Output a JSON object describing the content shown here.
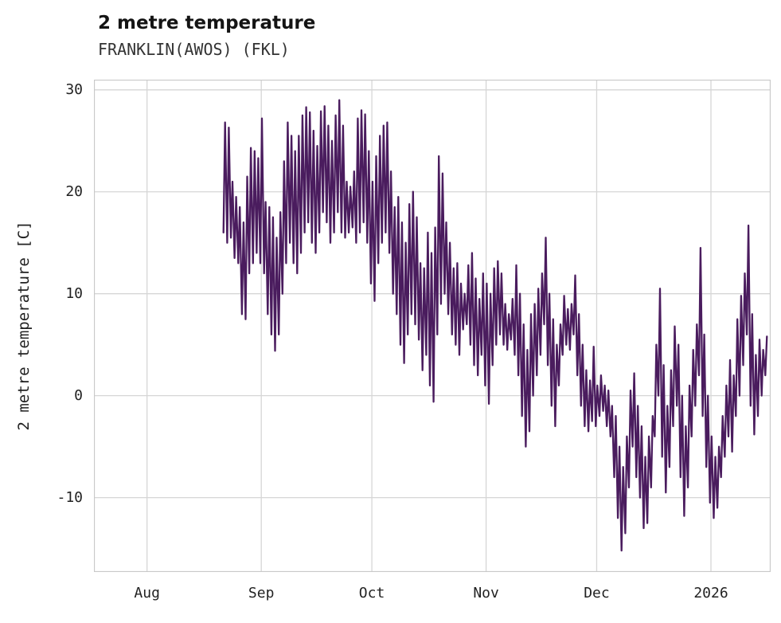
{
  "header": {
    "title": "2 metre temperature",
    "subtitle": "FRANKLIN(AWOS) (FKL)"
  },
  "chart_data": {
    "type": "line",
    "title": "2 metre temperature",
    "subtitle": "FRANKLIN(AWOS) (FKL)",
    "station": "FRANKLIN(AWOS) (FKL)",
    "xlabel": "",
    "ylabel": "2 metre temperature [C]",
    "x_unit": "days since 2025-08-01",
    "xlim": [
      -14.4,
      169.2
    ],
    "ylim": [
      -17.3,
      31.0
    ],
    "grid": true,
    "legend": "none",
    "line_color": "#4a1c5e",
    "grid_color": "#d6d6d6",
    "spine_color": "#c9c9c9",
    "x_ticks": [
      {
        "label": "Aug",
        "day": 0
      },
      {
        "label": "Sep",
        "day": 31
      },
      {
        "label": "Oct",
        "day": 61
      },
      {
        "label": "Nov",
        "day": 92
      },
      {
        "label": "Dec",
        "day": 122
      },
      {
        "label": "2026",
        "day": 153
      }
    ],
    "y_ticks": [
      30,
      20,
      10,
      0,
      -10
    ],
    "series": [
      {
        "name": "2 metre temperature",
        "start_day": 20.5,
        "note": "daily [min,max] degC pairs, one per day from 2025-08-21 to 2026-01-15",
        "daily_min_max": [
          [
            16,
            26.8
          ],
          [
            15,
            26.3
          ],
          [
            15.5,
            21
          ],
          [
            13.5,
            19.5
          ],
          [
            13,
            18.5
          ],
          [
            8,
            17
          ],
          [
            7.5,
            21.5
          ],
          [
            12,
            24.3
          ],
          [
            13,
            24
          ],
          [
            14,
            23.3
          ],
          [
            13,
            27.2
          ],
          [
            12,
            19
          ],
          [
            8,
            18.5
          ],
          [
            6,
            17.5
          ],
          [
            4.4,
            15.5
          ],
          [
            6,
            18
          ],
          [
            10,
            23
          ],
          [
            13,
            26.8
          ],
          [
            15,
            25.5
          ],
          [
            13,
            24
          ],
          [
            12,
            25.5
          ],
          [
            14,
            27.5
          ],
          [
            16,
            28.3
          ],
          [
            17,
            27.8
          ],
          [
            15,
            26
          ],
          [
            14,
            24.5
          ],
          [
            16,
            27.9
          ],
          [
            18,
            28.4
          ],
          [
            17,
            26.5
          ],
          [
            15,
            25
          ],
          [
            16,
            27.5
          ],
          [
            18,
            29
          ],
          [
            16,
            26.5
          ],
          [
            15.5,
            21
          ],
          [
            16,
            20.5
          ],
          [
            16.5,
            22
          ],
          [
            15,
            27.2
          ],
          [
            16,
            28
          ],
          [
            17,
            27.6
          ],
          [
            15,
            24
          ],
          [
            11,
            21
          ],
          [
            9.3,
            23.5
          ],
          [
            13,
            25.5
          ],
          [
            15,
            26.5
          ],
          [
            16,
            26.8
          ],
          [
            14,
            22
          ],
          [
            10,
            18.5
          ],
          [
            8,
            19.5
          ],
          [
            5,
            17
          ],
          [
            3.2,
            15
          ],
          [
            6,
            18.8
          ],
          [
            8,
            20
          ],
          [
            7,
            17.5
          ],
          [
            5.5,
            13
          ],
          [
            2.5,
            12.5
          ],
          [
            4,
            16
          ],
          [
            1,
            14
          ],
          [
            -0.6,
            16.5
          ],
          [
            6,
            23.5
          ],
          [
            9,
            21.8
          ],
          [
            10,
            17
          ],
          [
            8,
            15
          ],
          [
            6,
            12.5
          ],
          [
            5,
            13
          ],
          [
            4,
            11
          ],
          [
            6.5,
            10
          ],
          [
            7,
            12.8
          ],
          [
            5,
            14
          ],
          [
            3,
            11.5
          ],
          [
            2,
            9.5
          ],
          [
            4,
            12
          ],
          [
            1,
            11
          ],
          [
            -0.8,
            10
          ],
          [
            3,
            12.5
          ],
          [
            5,
            13.2
          ],
          [
            6,
            12
          ],
          [
            5,
            9
          ],
          [
            4.5,
            8
          ],
          [
            5.5,
            9.5
          ],
          [
            4,
            12.8
          ],
          [
            2,
            10
          ],
          [
            -2,
            7
          ],
          [
            -5,
            4.5
          ],
          [
            -3.5,
            8
          ],
          [
            0,
            9
          ],
          [
            2,
            10.5
          ],
          [
            4,
            12
          ],
          [
            7,
            15.5
          ],
          [
            3,
            10
          ],
          [
            -1,
            7.5
          ],
          [
            -3,
            5
          ],
          [
            1,
            7
          ],
          [
            4,
            9.8
          ],
          [
            5,
            8.5
          ],
          [
            4.5,
            9
          ],
          [
            6,
            11.8
          ],
          [
            2,
            8
          ],
          [
            -1,
            5
          ],
          [
            -3,
            2.5
          ],
          [
            -3.5,
            1.5
          ],
          [
            -2.5,
            4.8
          ],
          [
            -3,
            1
          ],
          [
            -2,
            2
          ],
          [
            -1.5,
            1
          ],
          [
            -3,
            0.5
          ],
          [
            -4,
            -1
          ],
          [
            -8,
            -2
          ],
          [
            -12,
            -5
          ],
          [
            -15.2,
            -7
          ],
          [
            -13.5,
            -4
          ],
          [
            -9,
            0.5
          ],
          [
            -5,
            2.2
          ],
          [
            -8,
            -1
          ],
          [
            -10,
            -3
          ],
          [
            -13,
            -6
          ],
          [
            -12.5,
            -4
          ],
          [
            -9,
            -2
          ],
          [
            -4,
            5
          ],
          [
            0,
            10.5
          ],
          [
            -6,
            3
          ],
          [
            -9.5,
            -1
          ],
          [
            -7,
            2.5
          ],
          [
            -3,
            6.8
          ],
          [
            -1,
            5
          ],
          [
            -8,
            0
          ],
          [
            -11.8,
            -3
          ],
          [
            -9,
            1
          ],
          [
            -4,
            4.5
          ],
          [
            -1,
            7
          ],
          [
            2,
            14.5
          ],
          [
            -2,
            6
          ],
          [
            -7,
            0
          ],
          [
            -10.5,
            -4
          ],
          [
            -12,
            -6
          ],
          [
            -11,
            -5
          ],
          [
            -8,
            -2
          ],
          [
            -6,
            1
          ],
          [
            -4,
            3.5
          ],
          [
            -5.5,
            2
          ],
          [
            -2,
            7.5
          ],
          [
            0,
            9.8
          ],
          [
            3,
            12
          ],
          [
            6,
            16.7
          ],
          [
            -1,
            8
          ],
          [
            -3.8,
            4
          ],
          [
            -2,
            5.5
          ],
          [
            0,
            4.5
          ],
          [
            2,
            5.8
          ]
        ]
      }
    ]
  }
}
